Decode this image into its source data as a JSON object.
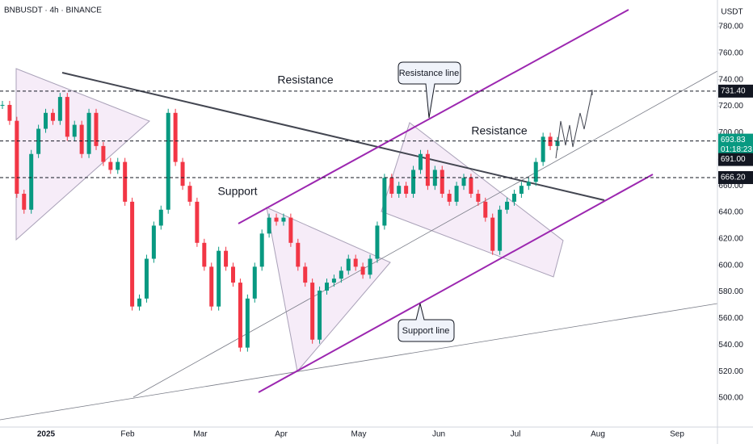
{
  "chart_data": {
    "type": "candlestick",
    "title": "BNBUSDT · 4h · BINANCE",
    "currency": "USDT",
    "countdown": "01:18:23",
    "x_labels": [
      "2025",
      "Feb",
      "Mar",
      "Apr",
      "May",
      "Jun",
      "Jul",
      "Aug",
      "Sep"
    ],
    "series": [
      {
        "color": "#089981",
        "down_color": "#f23645",
        "values": [
          721,
          709,
          654,
          642,
          684,
          703,
          715,
          709,
          727,
          697,
          706,
          684,
          715,
          690,
          678,
          672,
          678,
          648,
          569,
          575,
          605,
          630,
          642,
          715,
          678,
          660,
          648,
          617,
          599,
          569,
          611,
          599,
          587,
          538,
          575,
          599,
          624,
          636,
          633,
          636,
          617,
          599,
          587,
          544,
          581,
          587,
          590,
          596,
          605,
          599,
          593,
          605,
          630,
          666,
          654,
          660,
          654,
          672,
          684,
          660,
          672,
          654,
          648,
          660,
          666,
          654,
          648,
          636,
          611,
          642,
          648,
          654,
          660,
          663,
          678,
          697,
          690,
          693.83
        ]
      }
    ],
    "ylim": [
      477.5,
      800.1
    ],
    "yticks": [
      {
        "value": 500,
        "label": "500.00"
      },
      {
        "value": 520,
        "label": "520.00"
      },
      {
        "value": 540,
        "label": "540.00"
      },
      {
        "value": 560,
        "label": "560.00"
      },
      {
        "value": 580,
        "label": "580.00"
      },
      {
        "value": 600,
        "label": "600.00"
      },
      {
        "value": 620,
        "label": "620.00"
      },
      {
        "value": 640,
        "label": "640.00"
      },
      {
        "value": 660,
        "label": "660.00"
      },
      {
        "value": 680,
        "label": "680.00"
      },
      {
        "value": 700,
        "label": "700.00"
      },
      {
        "value": 720,
        "label": "720.00"
      },
      {
        "value": 740,
        "label": "740.00"
      },
      {
        "value": 760,
        "label": "760.00"
      },
      {
        "value": 780,
        "label": "780.00"
      }
    ],
    "price_levels": [
      {
        "value": 731.4,
        "label": "731.40",
        "dashed": true
      },
      {
        "value": 691,
        "label": "691.00",
        "dashed": false
      },
      {
        "value": 666.2,
        "label": "666.20",
        "dashed": true
      }
    ],
    "annotations": [
      "Resistance",
      "Support",
      "Resistance",
      "Resistance line",
      "Support line"
    ]
  }
}
